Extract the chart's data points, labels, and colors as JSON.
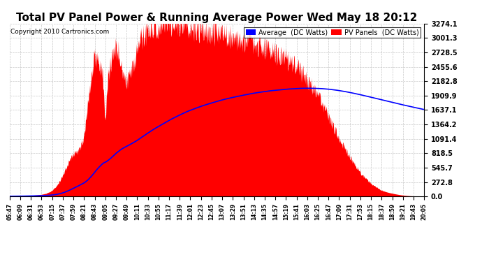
{
  "title": "Total PV Panel Power & Running Average Power Wed May 18 20:12",
  "copyright": "Copyright 2010 Cartronics.com",
  "legend_average": "Average  (DC Watts)",
  "legend_pv": "PV Panels  (DC Watts)",
  "ymax": 3274.1,
  "yticks": [
    0.0,
    272.8,
    545.7,
    818.5,
    1091.4,
    1364.2,
    1637.1,
    1909.9,
    2182.8,
    2455.6,
    2728.5,
    3001.3,
    3274.1
  ],
  "background_color": "#ffffff",
  "pv_color": "#ff0000",
  "avg_color": "#0000ff",
  "grid_color": "#c8c8c8",
  "title_fontsize": 11,
  "x_labels": [
    "05:47",
    "06:09",
    "06:31",
    "06:53",
    "07:15",
    "07:37",
    "07:59",
    "08:21",
    "08:43",
    "09:05",
    "09:27",
    "09:49",
    "10:11",
    "10:33",
    "10:55",
    "11:17",
    "11:39",
    "12:01",
    "12:23",
    "12:45",
    "13:07",
    "13:29",
    "13:51",
    "14:13",
    "14:35",
    "14:57",
    "15:19",
    "15:41",
    "16:03",
    "16:25",
    "16:47",
    "17:09",
    "17:31",
    "17:53",
    "18:15",
    "18:37",
    "18:59",
    "19:21",
    "19:43",
    "20:05"
  ]
}
